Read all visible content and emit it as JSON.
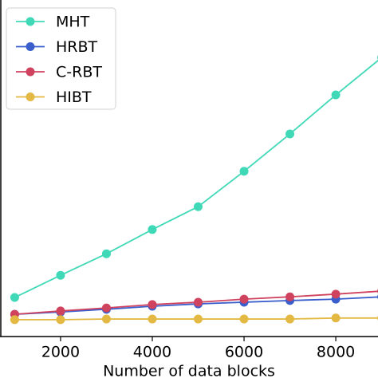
{
  "chart_data": {
    "type": "line",
    "x_label": "Number of data blocks",
    "x": [
      1000,
      2000,
      3000,
      4000,
      5000,
      6000,
      7000,
      8000,
      9000
    ],
    "series": [
      {
        "name": "MHT",
        "color": "#40d9b8",
        "values": [
          11.6,
          18.2,
          24.6,
          31.8,
          38.6,
          49.1,
          60.2,
          71.8,
          82.9
        ]
      },
      {
        "name": "HRBT",
        "color": "#3a5fcd",
        "values": [
          6.6,
          7.3,
          8.1,
          9.0,
          9.7,
          10.2,
          10.7,
          11.1,
          11.8
        ]
      },
      {
        "name": "C-RBT",
        "color": "#d0435f",
        "values": [
          6.6,
          7.6,
          8.5,
          9.5,
          10.2,
          11.1,
          11.8,
          12.6,
          13.5
        ]
      },
      {
        "name": "HIBT",
        "color": "#e3b943",
        "values": [
          5.0,
          5.0,
          5.2,
          5.2,
          5.2,
          5.2,
          5.2,
          5.5,
          5.5
        ]
      }
    ],
    "xlim": [
      680,
      8920
    ],
    "xticks": [
      2000,
      4000,
      6000,
      8000
    ],
    "ylim": [
      0,
      100
    ],
    "legend": "upper left"
  }
}
